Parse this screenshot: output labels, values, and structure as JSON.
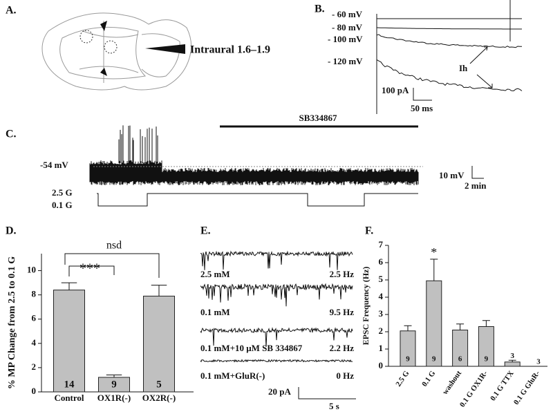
{
  "panel_a": {
    "label": "A.",
    "caption": "Intraural 1.6–1.9"
  },
  "panel_b": {
    "label": "B.",
    "potentials": [
      "- 60 mV",
      "- 80 mV",
      "- 100 mV",
      "- 120 mV"
    ],
    "current_label": "Ih",
    "scale_y": "100 pA",
    "scale_x": "50 ms"
  },
  "panel_c": {
    "label": "C.",
    "drug": "SB334867",
    "resting": "-54 mV",
    "high_glucose": "2.5 G",
    "low_glucose": "0.1 G",
    "scale_y": "10 mV",
    "scale_x": "2 min"
  },
  "panel_e": {
    "label": "E.",
    "rows": [
      [
        "2.5 mM",
        "2.5 Hz"
      ],
      [
        "0.1 mM",
        "9.5 Hz"
      ],
      [
        "0.1 mM+10 μM SB 334867",
        "2.2 Hz"
      ],
      [
        "0.1 mM+GluR(-)",
        "0 Hz"
      ]
    ],
    "scale_y": "20 pA",
    "scale_x": "5 s"
  },
  "chart_data": [
    {
      "type": "bar",
      "panel": "D.",
      "y_label": "% MP Change from 2.5 to 0.1 G",
      "categories": [
        "Control",
        "OX1R(-)",
        "OX2R(-)"
      ],
      "values": [
        8.4,
        1.2,
        7.9
      ],
      "errors": [
        0.6,
        0.2,
        0.9
      ],
      "n": [
        14,
        9,
        5
      ],
      "color": "#c0c0c0",
      "ylim": [
        0,
        11.4
      ],
      "yticks": [
        0,
        2,
        4,
        6,
        8,
        10
      ],
      "annotations": [
        "***",
        "nsd"
      ]
    },
    {
      "type": "bar",
      "panel": "F.",
      "y_label": "EPSC Frequency (Hz)",
      "categories": [
        "2.5 G",
        "0.1 G",
        "washout",
        "0.1 G OX1R-",
        "0.1 G TTX",
        "0.1 G GluR-"
      ],
      "values": [
        2.05,
        4.95,
        2.1,
        2.3,
        0.25,
        0
      ],
      "errors": [
        0.3,
        1.25,
        0.35,
        0.35,
        0.1,
        0
      ],
      "n": [
        9,
        9,
        6,
        9,
        3,
        3
      ],
      "color": "#c0c0c0",
      "ylim": [
        0,
        7
      ],
      "yticks": [
        0,
        1,
        2,
        3,
        4,
        5,
        6,
        7
      ],
      "annotations": [
        "*"
      ]
    }
  ]
}
